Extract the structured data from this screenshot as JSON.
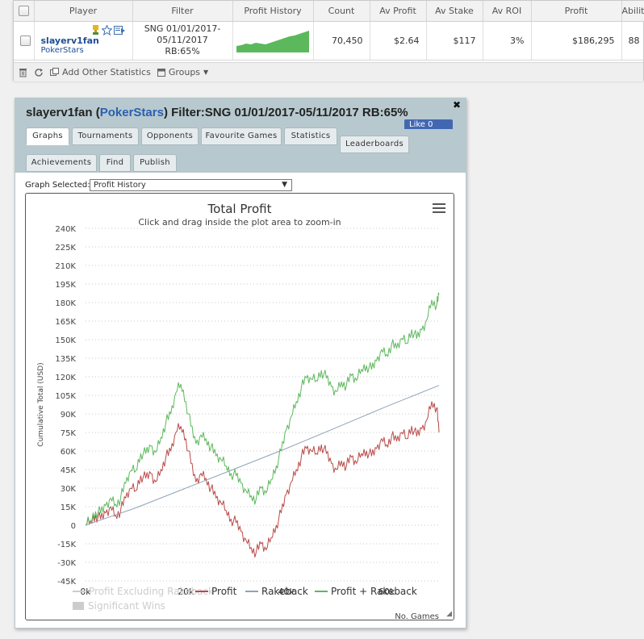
{
  "table": {
    "headers": [
      "Player",
      "Filter",
      "Profit History",
      "Count",
      "Av Profit",
      "Av Stake",
      "Av ROI",
      "Profit",
      "Ability"
    ],
    "row": {
      "player": "slayerv1fan",
      "site": "PokerStars",
      "filter_line1": "SNG 01/01/2017-",
      "filter_line2": "05/11/2017 RB:65%",
      "count": "70,450",
      "av_profit": "$2.64",
      "av_stake": "$117",
      "av_roi": "3%",
      "profit": "$186,295",
      "ability": "88"
    }
  },
  "toolbar": {
    "add_stats": "Add Other Statistics",
    "groups": "Groups"
  },
  "panel": {
    "title_player": "slayerv1fan (",
    "title_site": "PokerStars",
    "title_rest": ") Filter:SNG 01/01/2017-05/11/2017 RB:65%",
    "like": "Like 0",
    "tabs": [
      "Graphs",
      "Tournaments",
      "Opponents",
      "Favourite Games",
      "Statistics",
      "Leaderboards",
      "Achievements",
      "Find",
      "Publish"
    ],
    "graph_selected_label": "Graph Selected:",
    "graph_selected_value": "Profit History"
  },
  "chart_data": {
    "type": "line",
    "title": "Total Profit",
    "subtitle": "Click and drag inside the plot area to zoom-in",
    "ylabel": "Cumulative Total (USD)",
    "xlabel": "No. Games",
    "ylim": [
      -45000,
      240000
    ],
    "xlim": [
      0,
      70450
    ],
    "y_ticks": [
      "240K",
      "225K",
      "210K",
      "195K",
      "180K",
      "165K",
      "150K",
      "135K",
      "120K",
      "105K",
      "90K",
      "75K",
      "60K",
      "45K",
      "30K",
      "15K",
      "0",
      "-15K",
      "-30K",
      "-45K"
    ],
    "x_ticks": [
      "0k",
      "20k",
      "40k",
      "60k"
    ],
    "grid": true,
    "legend_position": "bottom",
    "legend": [
      "Profit Excluding Rakeback",
      "Profit",
      "Rakeback",
      "Profit + Rakeback",
      "Significant Wins"
    ],
    "colors": {
      "profit": "#b94a48",
      "rakeback": "#8fa3b8",
      "profit_rakeback": "#5cb85c",
      "disabled": "#cccccc"
    },
    "series": [
      {
        "name": "Profit",
        "x": [
          0,
          1000,
          2000,
          3000,
          4000,
          5000,
          6000,
          7000,
          8000,
          9000,
          10000,
          11000,
          12000,
          13000,
          14000,
          15000,
          16000,
          17000,
          18000,
          19000,
          20000,
          21000,
          22000,
          23000,
          24000,
          25000,
          26000,
          27000,
          28000,
          29000,
          30000,
          31000,
          32000,
          33000,
          34000,
          35000,
          36000,
          37000,
          38000,
          39000,
          40000,
          41000,
          42000,
          43000,
          44000,
          45000,
          46000,
          47000,
          48000,
          49000,
          50000,
          51000,
          52000,
          53000,
          54000,
          55000,
          56000,
          57000,
          58000,
          59000,
          60000,
          61000,
          62000,
          63000,
          64000,
          65000,
          66000,
          67000,
          68000,
          69000,
          70000,
          70450
        ],
        "y": [
          0,
          3000,
          8000,
          5000,
          10000,
          15000,
          8000,
          12000,
          22000,
          30000,
          28000,
          40000,
          38000,
          42000,
          35000,
          45000,
          55000,
          60000,
          75000,
          80000,
          70000,
          50000,
          35000,
          42000,
          38000,
          30000,
          22000,
          18000,
          12000,
          5000,
          2000,
          -5000,
          -12000,
          -18000,
          -22000,
          -15000,
          -20000,
          -10000,
          0,
          10000,
          25000,
          35000,
          45000,
          55000,
          62000,
          60000,
          58000,
          65000,
          58000,
          50000,
          45000,
          52000,
          48000,
          55000,
          50000,
          58000,
          60000,
          56000,
          62000,
          70000,
          65000,
          72000,
          68000,
          75000,
          70000,
          80000,
          72000,
          78000,
          85000,
          100000,
          95000,
          75000
        ]
      },
      {
        "name": "Rakeback",
        "x": [
          0,
          10000,
          20000,
          30000,
          40000,
          50000,
          60000,
          70450
        ],
        "y": [
          0,
          14000,
          30000,
          46000,
          62000,
          79000,
          96000,
          113000
        ]
      },
      {
        "name": "Profit + Rakeback",
        "x": [
          0,
          1000,
          2000,
          3000,
          4000,
          5000,
          6000,
          7000,
          8000,
          9000,
          10000,
          11000,
          12000,
          13000,
          14000,
          15000,
          16000,
          17000,
          18000,
          19000,
          20000,
          21000,
          22000,
          23000,
          24000,
          25000,
          26000,
          27000,
          28000,
          29000,
          30000,
          31000,
          32000,
          33000,
          34000,
          35000,
          36000,
          37000,
          38000,
          39000,
          40000,
          41000,
          42000,
          43000,
          44000,
          45000,
          46000,
          47000,
          48000,
          49000,
          50000,
          51000,
          52000,
          53000,
          54000,
          55000,
          56000,
          57000,
          58000,
          59000,
          60000,
          61000,
          62000,
          63000,
          64000,
          65000,
          66000,
          67000,
          68000,
          69000,
          70000,
          70450
        ],
        "y": [
          0,
          4000,
          11000,
          10000,
          16000,
          22000,
          17000,
          22000,
          34000,
          44000,
          44000,
          58000,
          58000,
          64000,
          59000,
          71000,
          83000,
          90000,
          107000,
          114000,
          100000,
          80000,
          66000,
          73000,
          70000,
          63000,
          56000,
          53000,
          48000,
          42000,
          40000,
          34000,
          28000,
          24000,
          21000,
          30000,
          26000,
          37000,
          48000,
          60000,
          77000,
          88000,
          100000,
          111000,
          119000,
          118000,
          117000,
          125000,
          119000,
          112000,
          108000,
          116000,
          113000,
          121000,
          117000,
          126000,
          129000,
          126000,
          133000,
          142000,
          138000,
          146000,
          143000,
          151000,
          147000,
          158000,
          151000,
          158000,
          166000,
          182000,
          178000,
          186295
        ]
      }
    ]
  }
}
